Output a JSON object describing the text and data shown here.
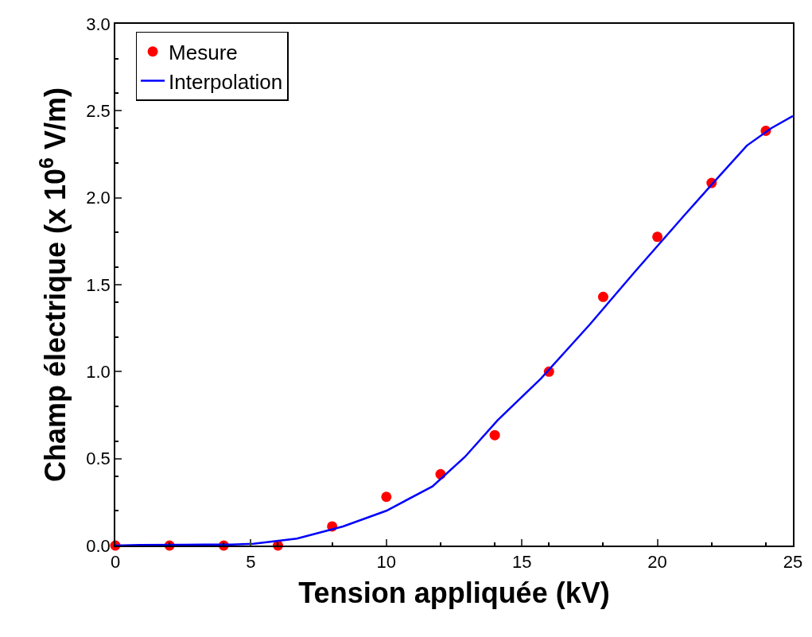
{
  "chart_data": {
    "type": "scatter",
    "xlabel": "Tension appliquée (kV)",
    "ylabel": "Champ électrique (x 10$^{6}$ V/m)",
    "xlim": [
      0,
      25
    ],
    "xticks": [
      0,
      5,
      10,
      15,
      20,
      25
    ],
    "ylim": [
      0,
      3.0
    ],
    "yticks": [
      {
        "value": 0,
        "label": "0.0"
      },
      {
        "value": 0.5,
        "label": "0.5"
      },
      {
        "value": 1,
        "label": "1.0"
      },
      {
        "value": 1.5,
        "label": "1.5"
      },
      {
        "value": 2,
        "label": "2.0"
      },
      {
        "value": 2.5,
        "label": "2.5"
      },
      {
        "value": 3,
        "label": "3.0"
      }
    ],
    "legend": "top left",
    "series": [
      {
        "name": "Mesure",
        "marker": "circle",
        "color": "#ff0000",
        "x": [
          0,
          2,
          4,
          6,
          8,
          10,
          12,
          14,
          16,
          18,
          20,
          22,
          24
        ],
        "values": [
          0,
          0,
          0,
          0,
          0.11,
          0.28,
          0.41,
          0.635,
          1.0,
          1.43,
          1.775,
          2.085,
          2.385
        ]
      },
      {
        "name": "Interpolation",
        "type": "line",
        "marker": "none",
        "line_style": "solid",
        "color": "#0000ff",
        "x": [
          0,
          0.9,
          2.6,
          4.3,
          5.1,
          6.7,
          8.4,
          10,
          11.7,
          12.9,
          14.1,
          15.7,
          17.5,
          19.2,
          21,
          22.2,
          23.3,
          24.2,
          25
        ],
        "values": [
          0,
          0.003,
          0.005,
          0.006,
          0.01,
          0.04,
          0.11,
          0.2,
          0.34,
          0.51,
          0.72,
          0.96,
          1.27,
          1.58,
          1.9,
          2.11,
          2.3,
          2.4,
          2.47
        ]
      }
    ]
  }
}
